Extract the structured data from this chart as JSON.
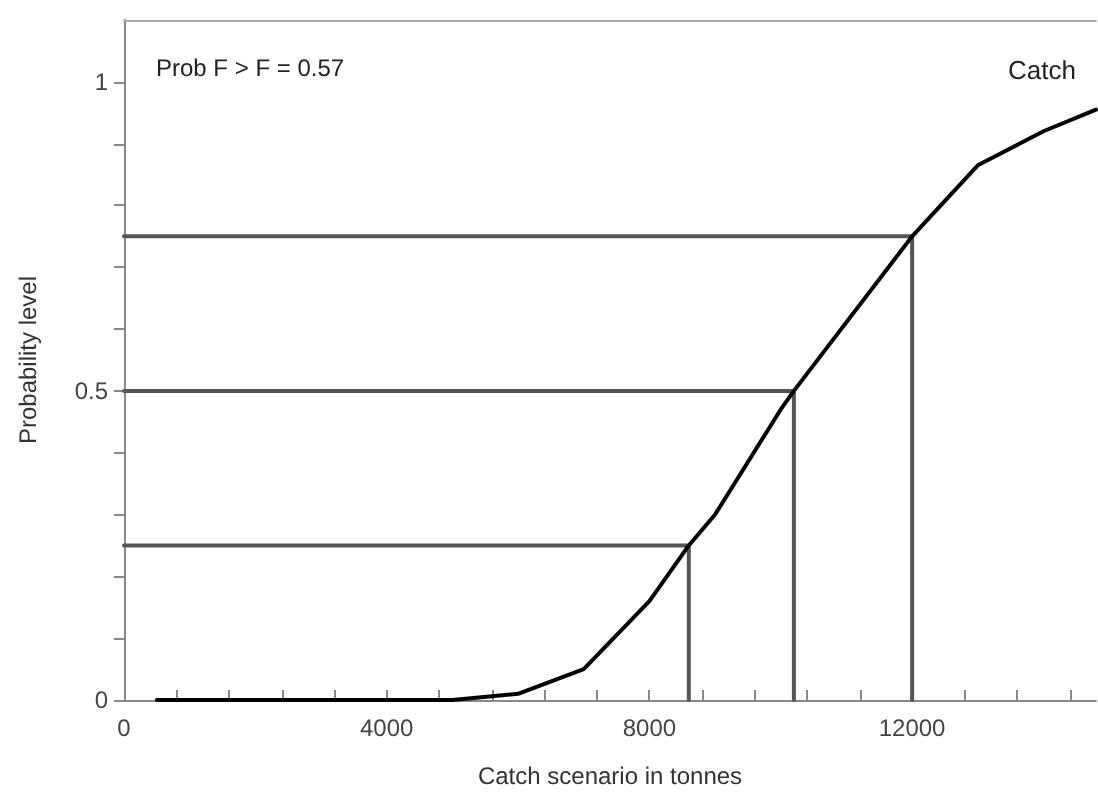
{
  "chart_data": {
    "type": "line",
    "xlabel": "Catch scenario in tonnes",
    "ylabel": "Probability level",
    "annotations": [
      "Prob F > F = 0.57"
    ],
    "x": [
      500,
      5000,
      6000,
      7000,
      8000,
      8600,
      9000,
      10000,
      10200,
      12000,
      13000,
      14000,
      14800
    ],
    "series": [
      {
        "name": "Catch",
        "color": "#000000",
        "values": [
          0,
          0,
          0.01,
          0.05,
          0.16,
          0.25,
          0.3,
          0.47,
          0.5,
          0.75,
          0.865,
          0.92,
          0.955
        ]
      },
      {
        "color": "#555555",
        "x": [
          0,
          8600,
          8600
        ],
        "values": [
          0.25,
          0.25,
          0
        ]
      },
      {
        "color": "#555555",
        "x": [
          0,
          10200,
          10200
        ],
        "values": [
          0.5,
          0.5,
          0
        ]
      },
      {
        "color": "#555555",
        "x": [
          0,
          12000,
          12000
        ],
        "values": [
          0.75,
          0.75,
          0
        ]
      }
    ],
    "xlim": [
      0,
      14800
    ],
    "xticks": [
      0,
      {
        "value": 800,
        "label": null
      },
      {
        "value": 1600,
        "label": null
      },
      {
        "value": 2400,
        "label": null
      },
      {
        "value": 3200,
        "label": null
      },
      4000,
      {
        "value": 4800,
        "label": null
      },
      {
        "value": 5600,
        "label": null
      },
      {
        "value": 6400,
        "label": null
      },
      {
        "value": 7200,
        "label": null
      },
      8000,
      {
        "value": 8800,
        "label": null
      },
      {
        "value": 9600,
        "label": null
      },
      {
        "value": 10400,
        "label": null
      },
      {
        "value": 11200,
        "label": null
      },
      12000,
      {
        "value": 12800,
        "label": null
      },
      {
        "value": 13600,
        "label": null
      },
      {
        "value": 14400,
        "label": null
      }
    ],
    "ylim": [
      0,
      1.1
    ],
    "yticks": [
      0,
      {
        "value": 0.1,
        "label": null
      },
      {
        "value": 0.2,
        "label": null
      },
      {
        "value": 0.3,
        "label": null
      },
      {
        "value": 0.4,
        "label": null
      },
      {
        "value": 0.5,
        "label": "0.5"
      },
      {
        "value": 0.6,
        "label": null
      },
      {
        "value": 0.7,
        "label": null
      },
      {
        "value": 0.8,
        "label": null
      },
      {
        "value": 0.9,
        "label": null
      },
      1
    ],
    "grid": false,
    "legend": false,
    "marker": "none",
    "line_style": "solid"
  }
}
